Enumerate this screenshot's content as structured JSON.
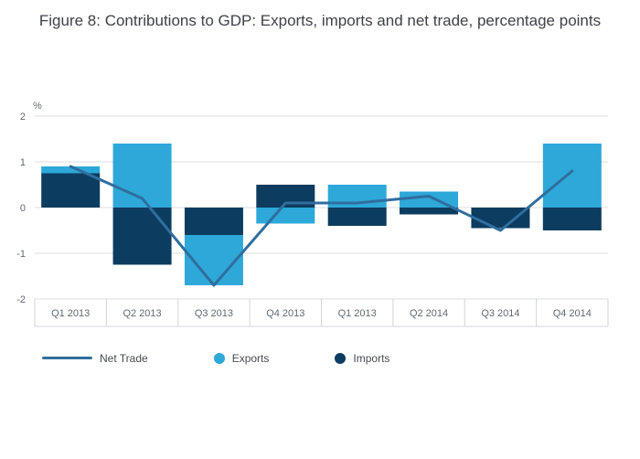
{
  "title": "Figure 8: Contributions to GDP: Exports, imports and net trade, percentage points",
  "y_axis": {
    "unit_label": "%",
    "ticks": [
      2,
      1,
      0,
      -1,
      -2
    ],
    "min": -2,
    "max": 2
  },
  "legend": [
    {
      "label": "Net Trade",
      "type": "line",
      "color": "#306e9e"
    },
    {
      "label": "Exports",
      "type": "circle",
      "color": "#2da8d9"
    },
    {
      "label": "Imports",
      "type": "circle",
      "color": "#0c3c5f"
    }
  ],
  "colors": {
    "grid": "#d9dde0",
    "tick_text": "#5f6b73",
    "cell_border": "#d0d5d8",
    "title_text": "#3d4248"
  },
  "chart_data": {
    "type": "bar",
    "subtype": "stacked-relative bars with overlaid line",
    "title": "Figure 8: Contributions to GDP: Exports, imports and net trade, percentage points",
    "categories": [
      "Q1 2013",
      "Q2 2013",
      "Q3 2013",
      "Q4 2013",
      "Q1 2013",
      "Q2 2014",
      "Q3 2014",
      "Q4 2014"
    ],
    "series": [
      {
        "name": "Imports",
        "type": "bar",
        "color": "#0c3c5f",
        "values": [
          0.75,
          -1.25,
          -0.6,
          0.5,
          -0.4,
          -0.15,
          -0.45,
          -0.5
        ]
      },
      {
        "name": "Exports",
        "type": "bar",
        "color": "#2da8d9",
        "values": [
          0.15,
          1.4,
          -1.1,
          -0.35,
          0.5,
          0.35,
          0,
          1.4
        ]
      },
      {
        "name": "Net Trade",
        "type": "line",
        "color": "#306e9e",
        "values": [
          0.9,
          0.2,
          -1.7,
          0.1,
          0.1,
          0.25,
          -0.5,
          0.8
        ]
      }
    ],
    "xlabel": "",
    "ylabel": "%",
    "ylim": [
      -2,
      2
    ],
    "grid": true,
    "legend_position": "bottom"
  }
}
